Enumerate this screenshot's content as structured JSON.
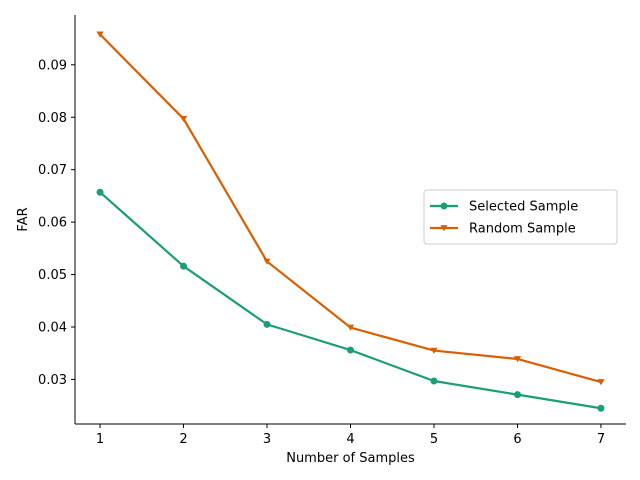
{
  "chart_data": {
    "type": "line",
    "title": "",
    "xlabel": "Number of Samples",
    "ylabel": "FAR",
    "x": [
      1,
      2,
      3,
      4,
      5,
      6,
      7
    ],
    "x_ticks": [
      "1",
      "2",
      "3",
      "4",
      "5",
      "6",
      "7"
    ],
    "y_ticks": [
      "0.03",
      "0.04",
      "0.05",
      "0.06",
      "0.07",
      "0.08",
      "0.09"
    ],
    "xlim": [
      0.7,
      7.3
    ],
    "ylim": [
      0.0215,
      0.0995
    ],
    "grid": false,
    "legend_position": "center-right",
    "series": [
      {
        "name": "Selected Sample",
        "color": "#1b9e77",
        "marker": "circle",
        "values": [
          0.0657,
          0.0516,
          0.0405,
          0.0356,
          0.0297,
          0.0271,
          0.0245
        ]
      },
      {
        "name": "Random Sample",
        "color": "#d95f02",
        "marker": "triangle-down",
        "values": [
          0.0958,
          0.0797,
          0.0525,
          0.0399,
          0.0355,
          0.0339,
          0.0295
        ]
      }
    ]
  }
}
